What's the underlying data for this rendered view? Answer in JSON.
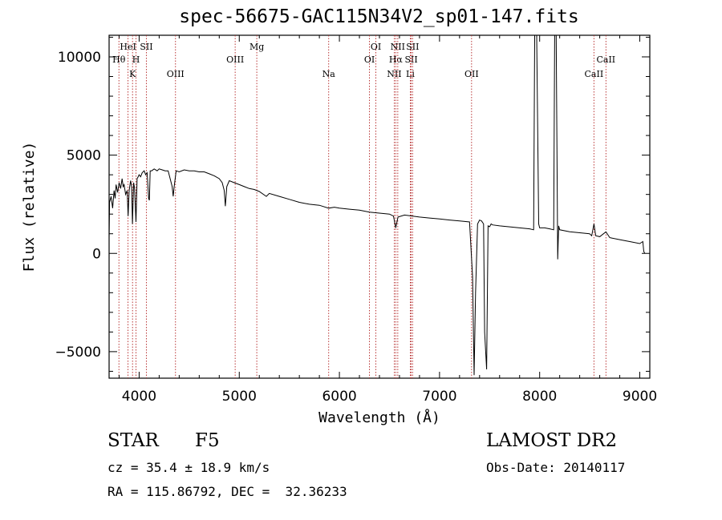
{
  "header": {
    "title": "spec-56675-GAC115N34V2_sp01-147.fits"
  },
  "info": {
    "class": "STAR",
    "subclass": "F5",
    "survey": "LAMOST DR2",
    "cz": "cz = 35.4 ± 18.9 km/s",
    "obs_date": "Obs-Date: 20140117",
    "radec": "RA = 115.86792, DEC =  32.36233"
  },
  "chart_data": {
    "type": "line",
    "title": "spec-56675-GAC115N34V2_sp01-147.fits",
    "xlabel": "Wavelength (Å)",
    "ylabel": "Flux (relative)",
    "xlim": [
      3700,
      9100
    ],
    "ylim": [
      -6350,
      11100
    ],
    "xticks": [
      4000,
      5000,
      6000,
      7000,
      8000,
      9000
    ],
    "xtick_labels": [
      "4000",
      "5000",
      "6000",
      "7000",
      "8000",
      "9000"
    ],
    "yticks": [
      -5000,
      0,
      5000,
      10000
    ],
    "ytick_labels": [
      "−5000",
      "0",
      "5000",
      "10000"
    ],
    "grid": false,
    "line_color": "#000000",
    "marker_color": "#b22222",
    "series": [
      {
        "x": [
          3700,
          3705,
          3720,
          3735,
          3750,
          3760,
          3770,
          3785,
          3800,
          3815,
          3830,
          3840,
          3850,
          3865,
          3880,
          3890,
          3900,
          3915,
          3925,
          3933,
          3945,
          3955,
          3968,
          3980,
          3990,
          4000,
          4015,
          4030,
          4050,
          4065,
          4080,
          4095,
          4102,
          4110,
          4125,
          4150,
          4180,
          4200,
          4230,
          4260,
          4290,
          4310,
          4330,
          4340,
          4350,
          4370,
          4400,
          4450,
          4500,
          4550,
          4600,
          4650,
          4700,
          4750,
          4800,
          4830,
          4850,
          4861,
          4875,
          4900,
          4950,
          5000,
          5050,
          5100,
          5150,
          5200,
          5270,
          5300,
          5400,
          5500,
          5600,
          5700,
          5800,
          5893,
          5950,
          6000,
          6100,
          6200,
          6300,
          6400,
          6500,
          6540,
          6563,
          6585,
          6650,
          6800,
          6900,
          7000,
          7100,
          7200,
          7300,
          7330,
          7345,
          7360,
          7380,
          7400,
          7420,
          7440,
          7450,
          7470,
          7485,
          7500,
          7515,
          7530,
          7600,
          7700,
          7800,
          7900,
          7940,
          7950,
          7970,
          7990,
          8000,
          8050,
          8100,
          8140,
          8150,
          8165,
          8180,
          8190,
          8200,
          8300,
          8400,
          8498,
          8520,
          8542,
          8560,
          8600,
          8662,
          8700,
          8800,
          8900,
          9000,
          9030,
          9040,
          9050
        ],
        "y": [
          800,
          2600,
          2900,
          2300,
          3200,
          2800,
          3500,
          3100,
          3600,
          3300,
          3800,
          3400,
          3500,
          3000,
          3200,
          1900,
          3200,
          3700,
          3400,
          1500,
          3600,
          3300,
          1600,
          3800,
          3900,
          4000,
          3900,
          4100,
          4200,
          4000,
          4100,
          2800,
          2700,
          4200,
          4200,
          4300,
          4200,
          4300,
          4250,
          4200,
          4200,
          3800,
          3400,
          2900,
          3400,
          4200,
          4150,
          4250,
          4200,
          4200,
          4150,
          4150,
          4050,
          3950,
          3800,
          3600,
          3200,
          2400,
          3400,
          3700,
          3600,
          3500,
          3400,
          3300,
          3250,
          3150,
          2900,
          3050,
          2900,
          2750,
          2600,
          2500,
          2450,
          2300,
          2350,
          2300,
          2250,
          2200,
          2100,
          2050,
          2000,
          1900,
          1300,
          1850,
          1950,
          1850,
          1800,
          1750,
          1700,
          1650,
          1600,
          -1200,
          -6200,
          -2000,
          1500,
          1700,
          1650,
          1500,
          -4000,
          -5900,
          1400,
          1350,
          1500,
          1450,
          1400,
          1350,
          1300,
          1250,
          1200,
          11100,
          11100,
          1500,
          1300,
          1300,
          1250,
          1200,
          11100,
          11100,
          -300,
          1400,
          1200,
          1100,
          1050,
          1000,
          900,
          1500,
          900,
          850,
          1100,
          800,
          700,
          600,
          500,
          600,
          100,
          0
        ]
      }
    ],
    "line_markers": [
      {
        "label": "Hθ",
        "x": 3798,
        "row": 2
      },
      {
        "label": "HeI",
        "x": 3889,
        "row": 1
      },
      {
        "label": "K",
        "x": 3934,
        "row": 3
      },
      {
        "label": "H",
        "x": 3969,
        "row": 2
      },
      {
        "label": "SII",
        "x": 4072,
        "row": 1
      },
      {
        "label": "OIII",
        "x": 4363,
        "row": 3
      },
      {
        "label": "OIII",
        "x": 4959,
        "row": 2
      },
      {
        "label": "Mg",
        "x": 5175,
        "row": 1
      },
      {
        "label": "Na",
        "x": 5893,
        "row": 3
      },
      {
        "label": "OI",
        "x": 6300,
        "row": 2
      },
      {
        "label": "OI",
        "x": 6364,
        "row": 1
      },
      {
        "label": "NII",
        "x": 6548,
        "row": 3
      },
      {
        "label": "Hα",
        "x": 6563,
        "row": 2
      },
      {
        "label": "NII",
        "x": 6583,
        "row": 1
      },
      {
        "label": "Li",
        "x": 6708,
        "row": 3
      },
      {
        "label": "SII",
        "x": 6717,
        "row": 2
      },
      {
        "label": "SII",
        "x": 6731,
        "row": 1
      },
      {
        "label": "OII",
        "x": 7320,
        "row": 3
      },
      {
        "label": "CaII",
        "x": 8542,
        "row": 3
      },
      {
        "label": "CaII",
        "x": 8662,
        "row": 2
      }
    ]
  }
}
